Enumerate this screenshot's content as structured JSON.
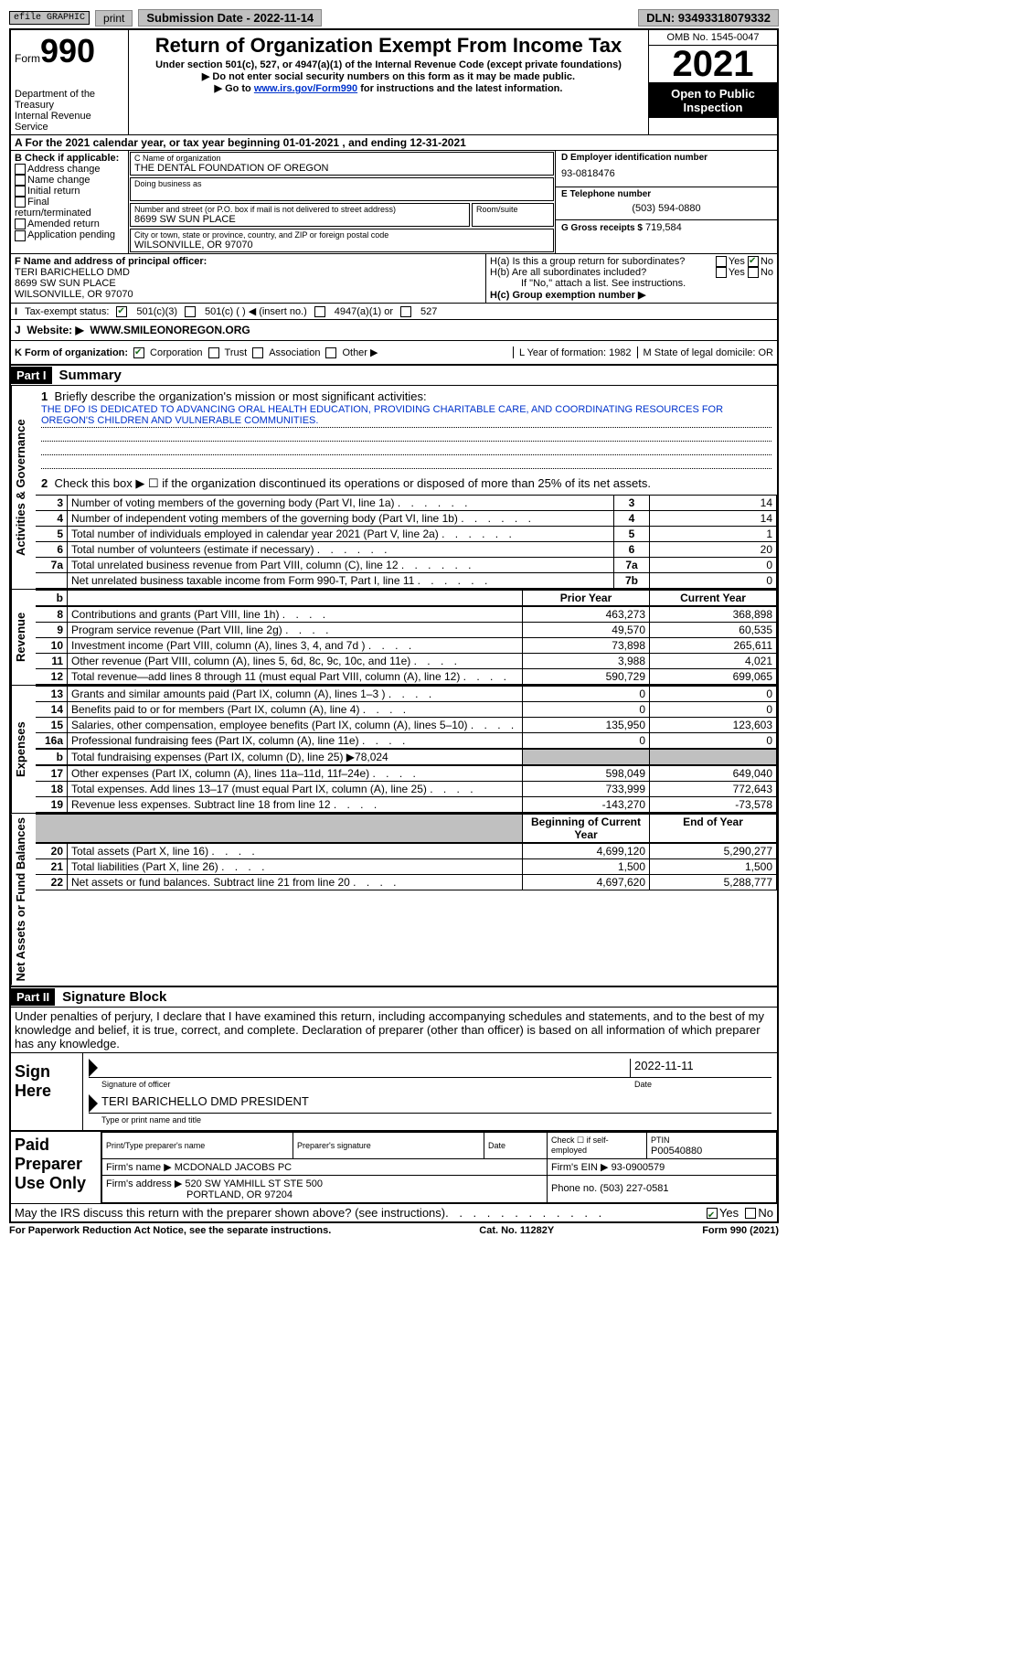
{
  "topbar": {
    "graphic": "efile GRAPHIC",
    "print": "print",
    "submission": "Submission Date - 2022-11-14",
    "dln": "DLN: 93493318079332"
  },
  "header": {
    "form_prefix": "Form",
    "form_number": "990",
    "title": "Return of Organization Exempt From Income Tax",
    "sub1": "Under section 501(c), 527, or 4947(a)(1) of the Internal Revenue Code (except private foundations)",
    "sub2": "▶ Do not enter social security numbers on this form as it may be made public.",
    "sub3_pre": "▶ Go to ",
    "sub3_link": "www.irs.gov/Form990",
    "sub3_post": " for instructions and the latest information.",
    "dept": "Department of the Treasury\nInternal Revenue Service",
    "omb": "OMB No. 1545-0047",
    "year": "2021",
    "open": "Open to Public Inspection"
  },
  "A": {
    "text_pre": "A For the 2021 calendar year, or tax year beginning ",
    "begin": "01-01-2021",
    "mid": " , and ending ",
    "end": "12-31-2021"
  },
  "B": {
    "hdr": "B Check if applicable:",
    "opts": [
      "Address change",
      "Name change",
      "Initial return",
      "Final return/terminated",
      "Amended return",
      "Application pending"
    ]
  },
  "C": {
    "name_lbl": "C Name of organization",
    "name": "THE DENTAL FOUNDATION OF OREGON",
    "dba_lbl": "Doing business as",
    "addr_lbl": "Number and street (or P.O. box if mail is not delivered to street address)",
    "room_lbl": "Room/suite",
    "addr": "8699 SW SUN PLACE",
    "city_lbl": "City or town, state or province, country, and ZIP or foreign postal code",
    "city": "WILSONVILLE, OR  97070"
  },
  "D": {
    "ein_lbl": "D Employer identification number",
    "ein": "93-0818476",
    "phone_lbl": "E Telephone number",
    "phone": "(503) 594-0880",
    "gross_lbl": "G Gross receipts $",
    "gross": "719,584"
  },
  "F": {
    "lbl": "F Name and address of principal officer:",
    "name": "TERI BARICHELLO DMD",
    "addr1": "8699 SW SUN PLACE",
    "addr2": "WILSONVILLE, OR  97070"
  },
  "H": {
    "a": "H(a)  Is this a group return for subordinates?",
    "a_no": "No",
    "b": "H(b)  Are all subordinates included?",
    "b_note": "If \"No,\" attach a list. See instructions.",
    "c": "H(c)  Group exemption number ▶"
  },
  "I": {
    "lbl": "Tax-exempt status:",
    "o1": "501(c)(3)",
    "o2": "501(c) (  ) ◀ (insert no.)",
    "o3": "4947(a)(1) or",
    "o4": "527"
  },
  "J": {
    "lbl": "Website: ▶",
    "val": "WWW.SMILEONOREGON.ORG"
  },
  "K": {
    "lbl": "K Form of organization:",
    "o1": "Corporation",
    "o2": "Trust",
    "o3": "Association",
    "o4": "Other ▶",
    "L": "L Year of formation: 1982",
    "M": "M State of legal domicile: OR"
  },
  "part1": {
    "hdr": "Part I",
    "title": "Summary",
    "line1_lbl": "Briefly describe the organization's mission or most significant activities:",
    "line1_val": "THE DFO IS DEDICATED TO ADVANCING ORAL HEALTH EDUCATION, PROVIDING CHARITABLE CARE, AND COORDINATING RESOURCES FOR OREGON'S CHILDREN AND VULNERABLE COMMUNITIES.",
    "line2": "Check this box ▶ ☐ if the organization discontinued its operations or disposed of more than 25% of its net assets.",
    "governance": "Activities & Governance",
    "revenue": "Revenue",
    "expenses": "Expenses",
    "netassets": "Net Assets or Fund Balances",
    "lines_gov": [
      {
        "n": "3",
        "t": "Number of voting members of the governing body (Part VI, line 1a)",
        "b": "3",
        "v": "14"
      },
      {
        "n": "4",
        "t": "Number of independent voting members of the governing body (Part VI, line 1b)",
        "b": "4",
        "v": "14"
      },
      {
        "n": "5",
        "t": "Total number of individuals employed in calendar year 2021 (Part V, line 2a)",
        "b": "5",
        "v": "1"
      },
      {
        "n": "6",
        "t": "Total number of volunteers (estimate if necessary)",
        "b": "6",
        "v": "20"
      },
      {
        "n": "7a",
        "t": "Total unrelated business revenue from Part VIII, column (C), line 12",
        "b": "7a",
        "v": "0"
      },
      {
        "n": "",
        "t": "Net unrelated business taxable income from Form 990-T, Part I, line 11",
        "b": "7b",
        "v": "0"
      }
    ],
    "col_prior": "Prior Year",
    "col_current": "Current Year",
    "lines_rev": [
      {
        "n": "8",
        "t": "Contributions and grants (Part VIII, line 1h)",
        "p": "463,273",
        "c": "368,898"
      },
      {
        "n": "9",
        "t": "Program service revenue (Part VIII, line 2g)",
        "p": "49,570",
        "c": "60,535"
      },
      {
        "n": "10",
        "t": "Investment income (Part VIII, column (A), lines 3, 4, and 7d )",
        "p": "73,898",
        "c": "265,611"
      },
      {
        "n": "11",
        "t": "Other revenue (Part VIII, column (A), lines 5, 6d, 8c, 9c, 10c, and 11e)",
        "p": "3,988",
        "c": "4,021"
      },
      {
        "n": "12",
        "t": "Total revenue—add lines 8 through 11 (must equal Part VIII, column (A), line 12)",
        "p": "590,729",
        "c": "699,065"
      }
    ],
    "lines_exp": [
      {
        "n": "13",
        "t": "Grants and similar amounts paid (Part IX, column (A), lines 1–3 )",
        "p": "0",
        "c": "0"
      },
      {
        "n": "14",
        "t": "Benefits paid to or for members (Part IX, column (A), line 4)",
        "p": "0",
        "c": "0"
      },
      {
        "n": "15",
        "t": "Salaries, other compensation, employee benefits (Part IX, column (A), lines 5–10)",
        "p": "135,950",
        "c": "123,603"
      },
      {
        "n": "16a",
        "t": "Professional fundraising fees (Part IX, column (A), line 11e)",
        "p": "0",
        "c": "0"
      }
    ],
    "line_b": "Total fundraising expenses (Part IX, column (D), line 25) ▶78,024",
    "lines_exp2": [
      {
        "n": "17",
        "t": "Other expenses (Part IX, column (A), lines 11a–11d, 11f–24e)",
        "p": "598,049",
        "c": "649,040"
      },
      {
        "n": "18",
        "t": "Total expenses. Add lines 13–17 (must equal Part IX, column (A), line 25)",
        "p": "733,999",
        "c": "772,643"
      },
      {
        "n": "19",
        "t": "Revenue less expenses. Subtract line 18 from line 12",
        "p": "-143,270",
        "c": "-73,578"
      }
    ],
    "col_begin": "Beginning of Current Year",
    "col_end": "End of Year",
    "lines_net": [
      {
        "n": "20",
        "t": "Total assets (Part X, line 16)",
        "p": "4,699,120",
        "c": "5,290,277"
      },
      {
        "n": "21",
        "t": "Total liabilities (Part X, line 26)",
        "p": "1,500",
        "c": "1,500"
      },
      {
        "n": "22",
        "t": "Net assets or fund balances. Subtract line 21 from line 20",
        "p": "4,697,620",
        "c": "5,288,777"
      }
    ]
  },
  "part2": {
    "hdr": "Part II",
    "title": "Signature Block",
    "decl": "Under penalties of perjury, I declare that I have examined this return, including accompanying schedules and statements, and to the best of my knowledge and belief, it is true, correct, and complete. Declaration of preparer (other than officer) is based on all information of which preparer has any knowledge.",
    "sign_here": "Sign Here",
    "sig_officer": "Signature of officer",
    "sig_date_lbl": "Date",
    "sig_date": "2022-11-11",
    "sig_name": "TERI BARICHELLO DMD  PRESIDENT",
    "sig_name_lbl": "Type or print name and title",
    "paid": "Paid Preparer Use Only",
    "prep_name_lbl": "Print/Type preparer's name",
    "prep_sig_lbl": "Preparer's signature",
    "date_lbl": "Date",
    "check_self": "Check ☐ if self-employed",
    "ptin_lbl": "PTIN",
    "ptin": "P00540880",
    "firm_name_lbl": "Firm's name    ▶",
    "firm_name": "MCDONALD JACOBS PC",
    "firm_ein_lbl": "Firm's EIN ▶",
    "firm_ein": "93-0900579",
    "firm_addr_lbl": "Firm's address ▶",
    "firm_addr1": "520 SW YAMHILL ST STE 500",
    "firm_addr2": "PORTLAND, OR  97204",
    "firm_phone_lbl": "Phone no.",
    "firm_phone": "(503) 227-0581",
    "discuss": "May the IRS discuss this return with the preparer shown above? (see instructions)",
    "discuss_yes": "Yes",
    "discuss_no": "No"
  },
  "footer": {
    "left": "For Paperwork Reduction Act Notice, see the separate instructions.",
    "mid": "Cat. No. 11282Y",
    "right": "Form 990 (2021)"
  },
  "colors": {
    "black": "#000000",
    "grey": "#c0c0c0",
    "link": "#0033cc",
    "checkgreen": "#1a6b1a"
  }
}
